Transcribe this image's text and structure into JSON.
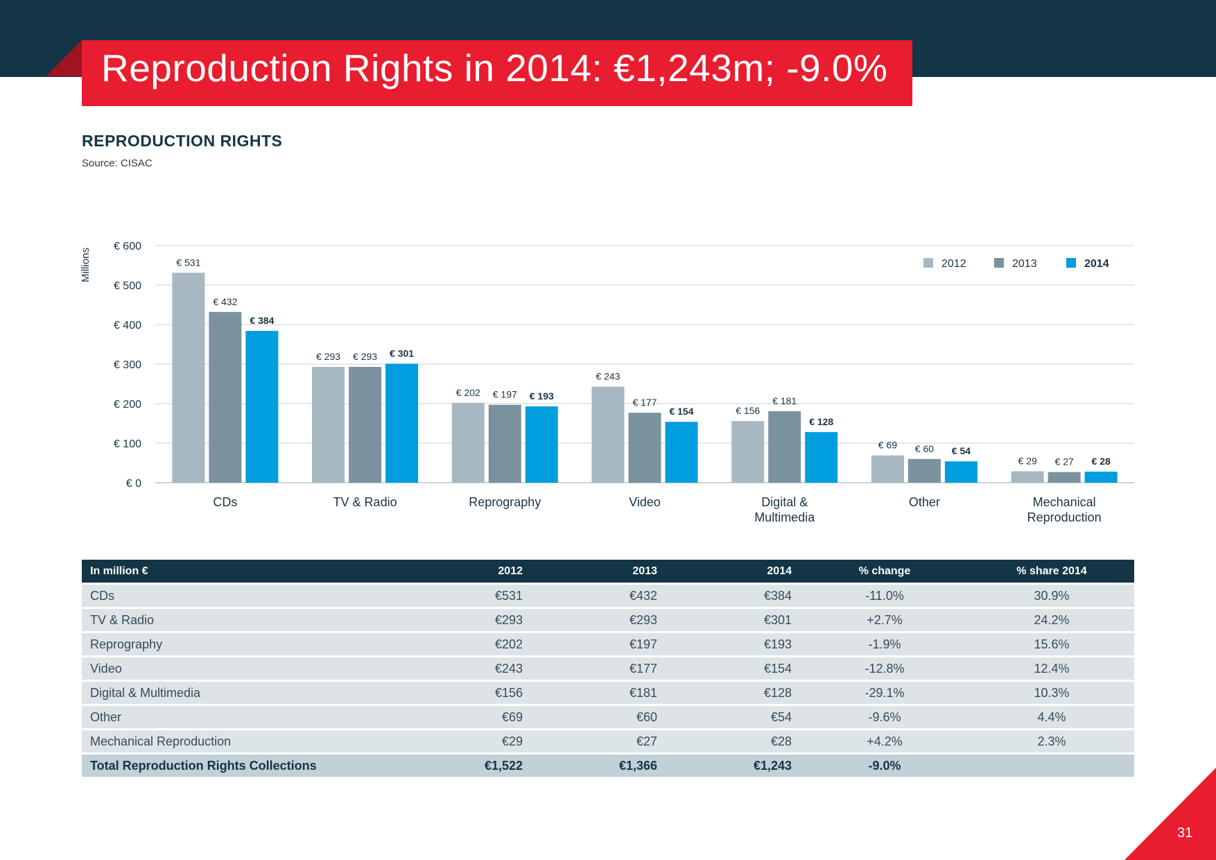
{
  "title": "Reproduction Rights in 2014: €1,243m; -9.0%",
  "section_title": "REPRODUCTION RIGHTS",
  "source": "Source: CISAC",
  "page_number": "31",
  "colors": {
    "2012": "#a8b8c2",
    "2013": "#7a929e",
    "2014": "#009ddf",
    "accent": "#e91d30",
    "dark": "#133545"
  },
  "chart_data": {
    "type": "bar",
    "ylabel": "Millions",
    "ylim": [
      0,
      600
    ],
    "yticks": [
      "€ 0",
      "€ 100",
      "€ 200",
      "€ 300",
      "€ 400",
      "€ 500",
      "€ 600"
    ],
    "categories": [
      "CDs",
      "TV & Radio",
      "Reprography",
      "Video",
      "Digital & Multimedia",
      "Other",
      "Mechanical Reproduction"
    ],
    "series": [
      {
        "name": "2012",
        "values": [
          531,
          293,
          202,
          243,
          156,
          69,
          29
        ],
        "labels": [
          "€ 531",
          "€ 293",
          "€ 202",
          "€ 243",
          "€ 156",
          "€ 69",
          "€ 29"
        ]
      },
      {
        "name": "2013",
        "values": [
          432,
          293,
          197,
          177,
          181,
          60,
          27
        ],
        "labels": [
          "€ 432",
          "€ 293",
          "€ 197",
          "€ 177",
          "€ 181",
          "€ 60",
          "€ 27"
        ]
      },
      {
        "name": "2014",
        "values": [
          384,
          301,
          193,
          154,
          128,
          54,
          28
        ],
        "labels": [
          "€ 384",
          "€ 301",
          "€ 193",
          "€ 154",
          "€ 128",
          "€ 54",
          "€ 28"
        ]
      }
    ],
    "legend_position": "top-right"
  },
  "table": {
    "headers": [
      "In million €",
      "2012",
      "2013",
      "2014",
      "% change",
      "% share 2014"
    ],
    "rows": [
      [
        "CDs",
        "€531",
        "€432",
        "€384",
        "-11.0%",
        "30.9%"
      ],
      [
        "TV & Radio",
        "€293",
        "€293",
        "€301",
        "+2.7%",
        "24.2%"
      ],
      [
        "Reprography",
        "€202",
        "€197",
        "€193",
        "-1.9%",
        "15.6%"
      ],
      [
        "Video",
        "€243",
        "€177",
        "€154",
        "-12.8%",
        "12.4%"
      ],
      [
        "Digital & Multimedia",
        "€156",
        "€181",
        "€128",
        "-29.1%",
        "10.3%"
      ],
      [
        "Other",
        "€69",
        "€60",
        "€54",
        "-9.6%",
        "4.4%"
      ],
      [
        "Mechanical Reproduction",
        "€29",
        "€27",
        "€28",
        "+4.2%",
        "2.3%"
      ]
    ],
    "total": [
      "Total Reproduction Rights Collections",
      "€1,522",
      "€1,366",
      "€1,243",
      "-9.0%",
      ""
    ]
  }
}
